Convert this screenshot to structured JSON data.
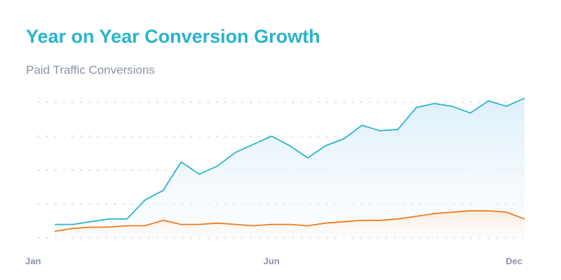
{
  "chart_data": {
    "type": "line",
    "title": "Year on Year Conversion Growth",
    "subtitle": "Paid Traffic Conversions",
    "categories": [
      "Jan",
      null,
      null,
      null,
      null,
      null,
      null,
      null,
      null,
      null,
      null,
      null,
      "Jun",
      null,
      null,
      null,
      null,
      null,
      null,
      null,
      null,
      null,
      null,
      null,
      null,
      null,
      "Dec"
    ],
    "series": [
      {
        "color": "#2bb5cc",
        "values": [
          10,
          10,
          12,
          14,
          14,
          28,
          35,
          56,
          47,
          53,
          63,
          69,
          75,
          68,
          59,
          68,
          73,
          83,
          79,
          80,
          96,
          99,
          97,
          92,
          101,
          97,
          103
        ]
      },
      {
        "color": "#f07c1c",
        "values": [
          5,
          7,
          8,
          8,
          9,
          9,
          13,
          10,
          10,
          11,
          10,
          9,
          10,
          10,
          9,
          11,
          12,
          13,
          13,
          14,
          16,
          18,
          19,
          20,
          20,
          19,
          14
        ]
      }
    ],
    "ylim": [
      0,
      105
    ],
    "yticks": [
      0,
      25,
      50,
      75,
      100
    ],
    "grid": true
  }
}
